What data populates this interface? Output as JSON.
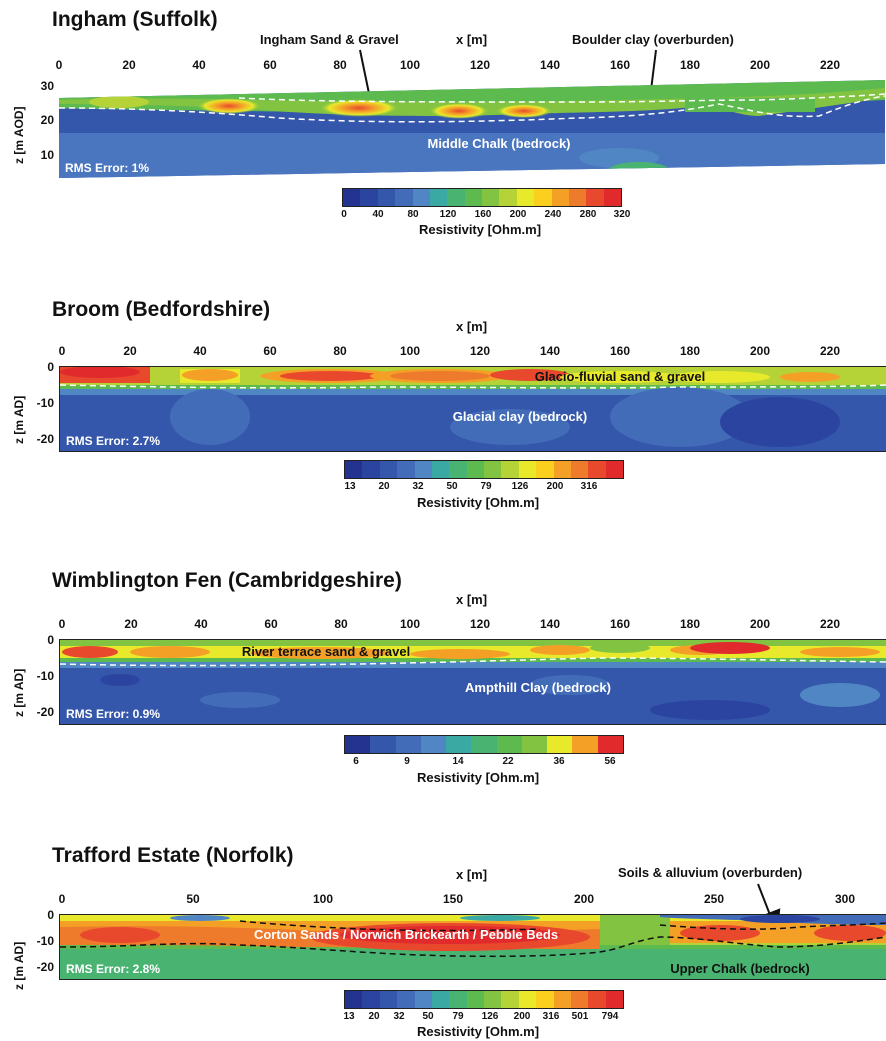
{
  "chart_data": [
    {
      "type": "heatmap",
      "title": "Ingham (Suffolk)",
      "xlabel": "x [m]",
      "ylabel": "z [m AOD]",
      "xticks": [
        "0",
        "20",
        "40",
        "60",
        "80",
        "100",
        "120",
        "140",
        "160",
        "180",
        "200",
        "220"
      ],
      "yticks": [
        "30",
        "20",
        "10"
      ],
      "rms": "RMS Error: 1%",
      "units": [
        {
          "label": "Middle Chalk (bedrock)"
        }
      ],
      "annotations": [
        "Ingham Sand & Gravel",
        "Boulder clay (overburden)"
      ],
      "colorbar": {
        "label": "Resistivity [Ohm.m]",
        "ticks": [
          "0",
          "40",
          "80",
          "120",
          "160",
          "200",
          "240",
          "280",
          "320"
        ],
        "colors": [
          "#23338f",
          "#2b449f",
          "#3557ab",
          "#436cb8",
          "#5186c4",
          "#3ba9a3",
          "#49b472",
          "#5cba4e",
          "#82c341",
          "#b5d336",
          "#e9e92c",
          "#fbcf1d",
          "#f4a027",
          "#ee7a2c",
          "#e8492d",
          "#e12a2c"
        ]
      }
    },
    {
      "type": "heatmap",
      "title": "Broom (Bedfordshire)",
      "xlabel": "x [m]",
      "ylabel": "z [m AD]",
      "xticks": [
        "0",
        "20",
        "40",
        "60",
        "80",
        "100",
        "120",
        "140",
        "160",
        "180",
        "200",
        "220"
      ],
      "yticks": [
        "0",
        "-10",
        "-20"
      ],
      "rms": "RMS Error: 2.7%",
      "units": [
        {
          "label": "Glacio-fluvial sand & gravel"
        },
        {
          "label": "Glacial clay (bedrock)"
        }
      ],
      "annotations": [],
      "colorbar": {
        "label": "Resistivity [Ohm.m]",
        "ticks": [
          "13",
          "20",
          "32",
          "50",
          "79",
          "126",
          "200",
          "316"
        ],
        "colors": [
          "#23338f",
          "#2b449f",
          "#3557ab",
          "#436cb8",
          "#5186c4",
          "#3ba9a3",
          "#49b472",
          "#5cba4e",
          "#82c341",
          "#b5d336",
          "#e9e92c",
          "#fbcf1d",
          "#f4a027",
          "#ee7a2c",
          "#e8492d",
          "#e12a2c"
        ]
      }
    },
    {
      "type": "heatmap",
      "title": "Wimblington Fen (Cambridgeshire)",
      "xlabel": "x [m]",
      "ylabel": "z [m AD]",
      "xticks": [
        "0",
        "20",
        "40",
        "60",
        "80",
        "100",
        "120",
        "140",
        "160",
        "180",
        "200",
        "220"
      ],
      "yticks": [
        "0",
        "-10",
        "-20"
      ],
      "rms": "RMS Error: 0.9%",
      "units": [
        {
          "label": "River terrace  sand & gravel"
        },
        {
          "label": "Ampthill Clay (bedrock)"
        }
      ],
      "annotations": [],
      "colorbar": {
        "label": "Resistivity [Ohm.m]",
        "ticks": [
          "6",
          "9",
          "14",
          "22",
          "36",
          "56"
        ],
        "colors": [
          "#23338f",
          "#3557ab",
          "#436cb8",
          "#5186c4",
          "#3ba9a3",
          "#49b472",
          "#5cba4e",
          "#82c341",
          "#e9e92c",
          "#f4a027",
          "#e12a2c"
        ]
      }
    },
    {
      "type": "heatmap",
      "title": "Trafford Estate (Norfolk)",
      "xlabel": "x [m]",
      "ylabel": "z [m AD]",
      "xticks": [
        "0",
        "50",
        "100",
        "150",
        "200",
        "250",
        "300"
      ],
      "yticks": [
        "0",
        "-10",
        "-20"
      ],
      "rms": "RMS Error: 2.8%",
      "units": [
        {
          "label": "Corton Sands / Norwich Brickearth / Pebble Beds"
        },
        {
          "label": "Upper Chalk (bedrock)"
        }
      ],
      "annotations": [
        "Soils & alluvium (overburden)"
      ],
      "colorbar": {
        "label": "Resistivity [Ohm.m]",
        "ticks": [
          "13",
          "20",
          "32",
          "50",
          "79",
          "126",
          "200",
          "316",
          "501",
          "794"
        ],
        "colors": [
          "#23338f",
          "#2b449f",
          "#3557ab",
          "#436cb8",
          "#5186c4",
          "#3ba9a3",
          "#49b472",
          "#5cba4e",
          "#82c341",
          "#b5d336",
          "#e9e92c",
          "#fbcf1d",
          "#f4a027",
          "#ee7a2c",
          "#e8492d",
          "#e12a2c"
        ]
      }
    }
  ]
}
